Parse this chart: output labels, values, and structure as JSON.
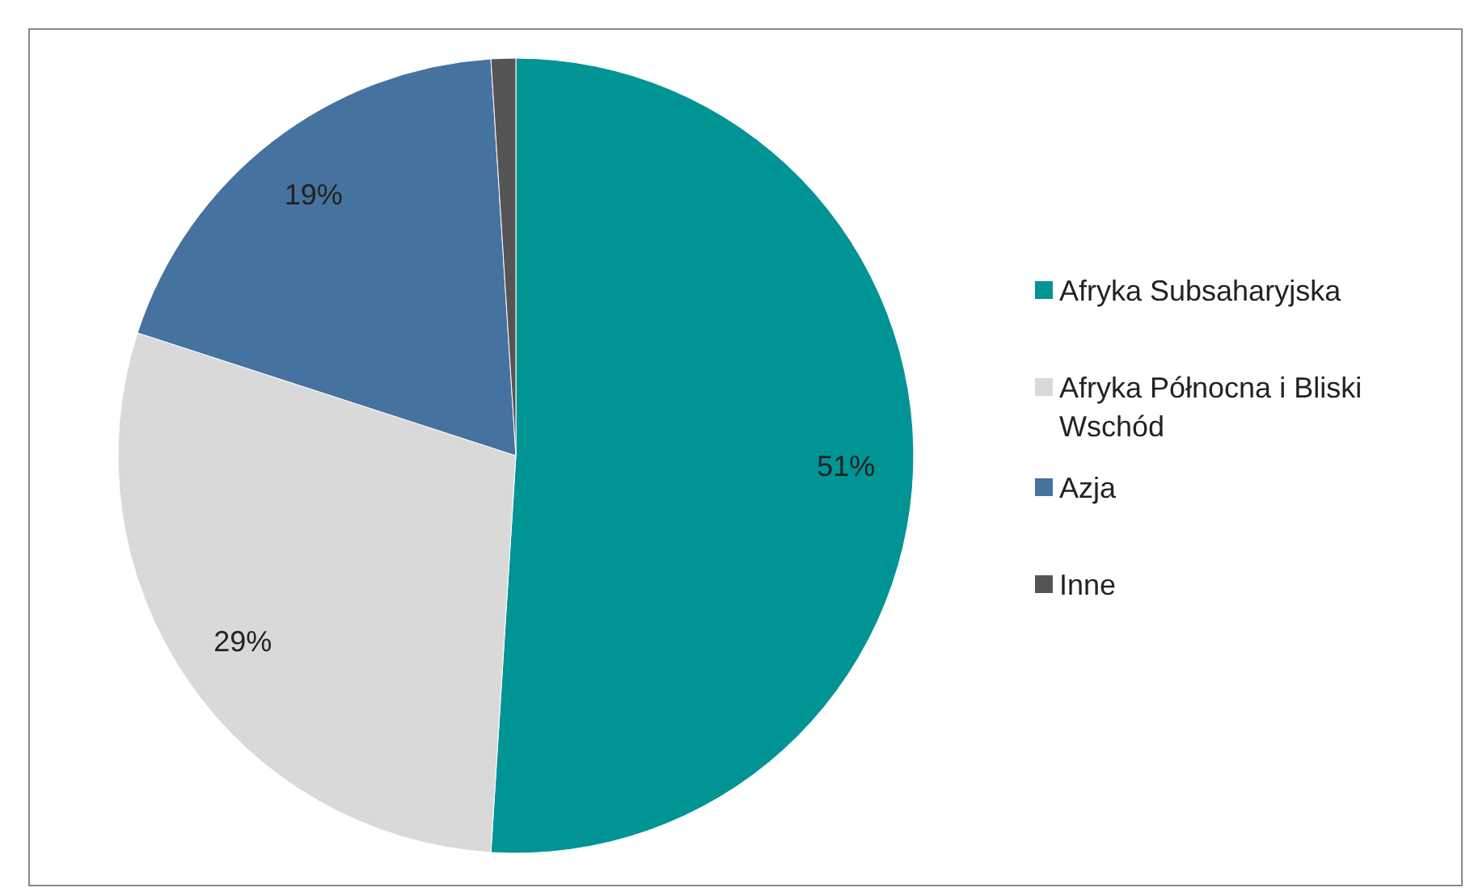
{
  "chart_data": {
    "type": "pie",
    "categories": [
      "Afryka Subsaharyjska",
      "Afryka Północna i Bliski Wschód",
      "Azja",
      "Inne"
    ],
    "values": [
      51,
      29,
      19,
      1
    ],
    "colors": [
      "#009494",
      "#d9d9d9",
      "#4672a0",
      "#555555"
    ],
    "value_labels": [
      "51%",
      "29%",
      "19%",
      null
    ],
    "legend": "right"
  }
}
